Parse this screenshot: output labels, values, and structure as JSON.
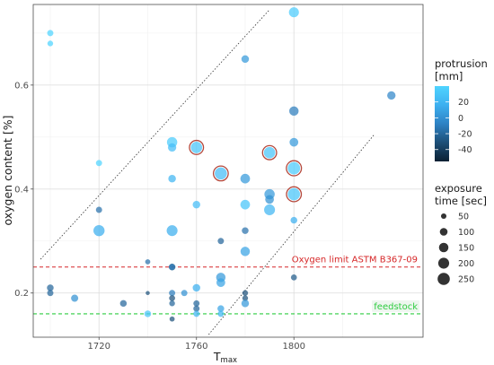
{
  "chart_data": {
    "type": "scatter",
    "xlabel": "T",
    "xlabel_sub": "max",
    "ylabel": "oxygen content [%]",
    "xlim": [
      1693,
      1853
    ],
    "ylim": [
      0.115,
      0.755
    ],
    "x_ticks": [
      1720,
      1760,
      1800
    ],
    "x_tick_labels": [
      "1720",
      "1760",
      "1800"
    ],
    "y_ticks": [
      0.2,
      0.4,
      0.6
    ],
    "y_tick_labels": [
      "0.2",
      "0.4",
      "0.6"
    ],
    "grid": true,
    "reference_lines": [
      {
        "label": "Oxygen limit ASTM B367-09",
        "y": 0.25,
        "color": "#d62728",
        "dash": "dashed"
      },
      {
        "label": "feedstock",
        "y": 0.16,
        "color": "#2ecc40",
        "dash": "dashed"
      }
    ],
    "diagonal_lines": [
      {
        "x1": 1696,
        "y1": 0.265,
        "x2": 1790,
        "y2": 0.745
      },
      {
        "x1": 1765,
        "y1": 0.12,
        "x2": 1833,
        "y2": 0.505
      }
    ],
    "color_legend": {
      "title": [
        "protrusion",
        "[mm]"
      ],
      "ticks": [
        20,
        0,
        -20,
        -40
      ],
      "tick_labels": [
        "20",
        "0",
        "-20",
        "-40"
      ],
      "range": [
        -55,
        40
      ],
      "colors": [
        "#0b2033",
        "#1d4f77",
        "#2e82c4",
        "#3db0f0",
        "#4fd4ff"
      ]
    },
    "size_legend": {
      "title": [
        "exposure",
        "time [sec]"
      ],
      "values": [
        50,
        100,
        150,
        200,
        250
      ],
      "labels": [
        "50",
        "100",
        "150",
        "200",
        "250"
      ]
    },
    "points": [
      {
        "x": 1800,
        "y": 0.74,
        "p": 35,
        "s": 160
      },
      {
        "x": 1700,
        "y": 0.7,
        "p": 40,
        "s": 60
      },
      {
        "x": 1700,
        "y": 0.68,
        "p": 40,
        "s": 50
      },
      {
        "x": 1780,
        "y": 0.65,
        "p": 5,
        "s": 90
      },
      {
        "x": 1840,
        "y": 0.58,
        "p": -5,
        "s": 110
      },
      {
        "x": 1800,
        "y": 0.55,
        "p": -10,
        "s": 140
      },
      {
        "x": 1800,
        "y": 0.49,
        "p": 5,
        "s": 120
      },
      {
        "x": 1750,
        "y": 0.49,
        "p": 35,
        "s": 170
      },
      {
        "x": 1750,
        "y": 0.48,
        "p": 25,
        "s": 110
      },
      {
        "x": 1760,
        "y": 0.48,
        "p": 30,
        "s": 210,
        "ring": true
      },
      {
        "x": 1790,
        "y": 0.47,
        "p": 30,
        "s": 210,
        "ring": true
      },
      {
        "x": 1720,
        "y": 0.45,
        "p": 40,
        "s": 60
      },
      {
        "x": 1800,
        "y": 0.44,
        "p": 35,
        "s": 250,
        "ring": true
      },
      {
        "x": 1770,
        "y": 0.43,
        "p": 25,
        "s": 240,
        "ring": true
      },
      {
        "x": 1780,
        "y": 0.42,
        "p": 5,
        "s": 150
      },
      {
        "x": 1750,
        "y": 0.42,
        "p": 20,
        "s": 90
      },
      {
        "x": 1790,
        "y": 0.39,
        "p": 5,
        "s": 170
      },
      {
        "x": 1800,
        "y": 0.39,
        "p": 30,
        "s": 240,
        "ring": true
      },
      {
        "x": 1790,
        "y": 0.38,
        "p": 0,
        "s": 120
      },
      {
        "x": 1760,
        "y": 0.37,
        "p": 25,
        "s": 90
      },
      {
        "x": 1780,
        "y": 0.37,
        "p": 30,
        "s": 150
      },
      {
        "x": 1790,
        "y": 0.36,
        "p": 20,
        "s": 190
      },
      {
        "x": 1720,
        "y": 0.36,
        "p": -15,
        "s": 60
      },
      {
        "x": 1800,
        "y": 0.34,
        "p": 15,
        "s": 70
      },
      {
        "x": 1720,
        "y": 0.32,
        "p": 15,
        "s": 200
      },
      {
        "x": 1750,
        "y": 0.32,
        "p": 15,
        "s": 190
      },
      {
        "x": 1780,
        "y": 0.32,
        "p": -15,
        "s": 70
      },
      {
        "x": 1770,
        "y": 0.3,
        "p": -20,
        "s": 60
      },
      {
        "x": 1780,
        "y": 0.28,
        "p": 10,
        "s": 140
      },
      {
        "x": 1740,
        "y": 0.26,
        "p": -15,
        "s": 40
      },
      {
        "x": 1750,
        "y": 0.25,
        "p": -30,
        "s": 70
      },
      {
        "x": 1750,
        "y": 0.25,
        "p": -10,
        "s": 60
      },
      {
        "x": 1800,
        "y": 0.23,
        "p": -25,
        "s": 55
      },
      {
        "x": 1770,
        "y": 0.23,
        "p": 5,
        "s": 140
      },
      {
        "x": 1770,
        "y": 0.22,
        "p": 10,
        "s": 120
      },
      {
        "x": 1760,
        "y": 0.21,
        "p": 15,
        "s": 90
      },
      {
        "x": 1700,
        "y": 0.21,
        "p": -20,
        "s": 70
      },
      {
        "x": 1700,
        "y": 0.2,
        "p": -20,
        "s": 60
      },
      {
        "x": 1780,
        "y": 0.2,
        "p": -30,
        "s": 50
      },
      {
        "x": 1740,
        "y": 0.2,
        "p": -30,
        "s": 25
      },
      {
        "x": 1750,
        "y": 0.2,
        "p": -10,
        "s": 60
      },
      {
        "x": 1755,
        "y": 0.2,
        "p": 0,
        "s": 60
      },
      {
        "x": 1710,
        "y": 0.19,
        "p": 0,
        "s": 80
      },
      {
        "x": 1750,
        "y": 0.19,
        "p": -30,
        "s": 55
      },
      {
        "x": 1780,
        "y": 0.19,
        "p": -30,
        "s": 50
      },
      {
        "x": 1760,
        "y": 0.18,
        "p": -20,
        "s": 60
      },
      {
        "x": 1730,
        "y": 0.18,
        "p": -20,
        "s": 70
      },
      {
        "x": 1780,
        "y": 0.18,
        "p": 5,
        "s": 90
      },
      {
        "x": 1750,
        "y": 0.18,
        "p": -20,
        "s": 50
      },
      {
        "x": 1760,
        "y": 0.17,
        "p": -20,
        "s": 60
      },
      {
        "x": 1770,
        "y": 0.17,
        "p": 10,
        "s": 70
      },
      {
        "x": 1740,
        "y": 0.16,
        "p": 30,
        "s": 70
      },
      {
        "x": 1760,
        "y": 0.16,
        "p": 20,
        "s": 60
      },
      {
        "x": 1770,
        "y": 0.16,
        "p": 20,
        "s": 60
      },
      {
        "x": 1750,
        "y": 0.15,
        "p": -30,
        "s": 40
      }
    ]
  }
}
